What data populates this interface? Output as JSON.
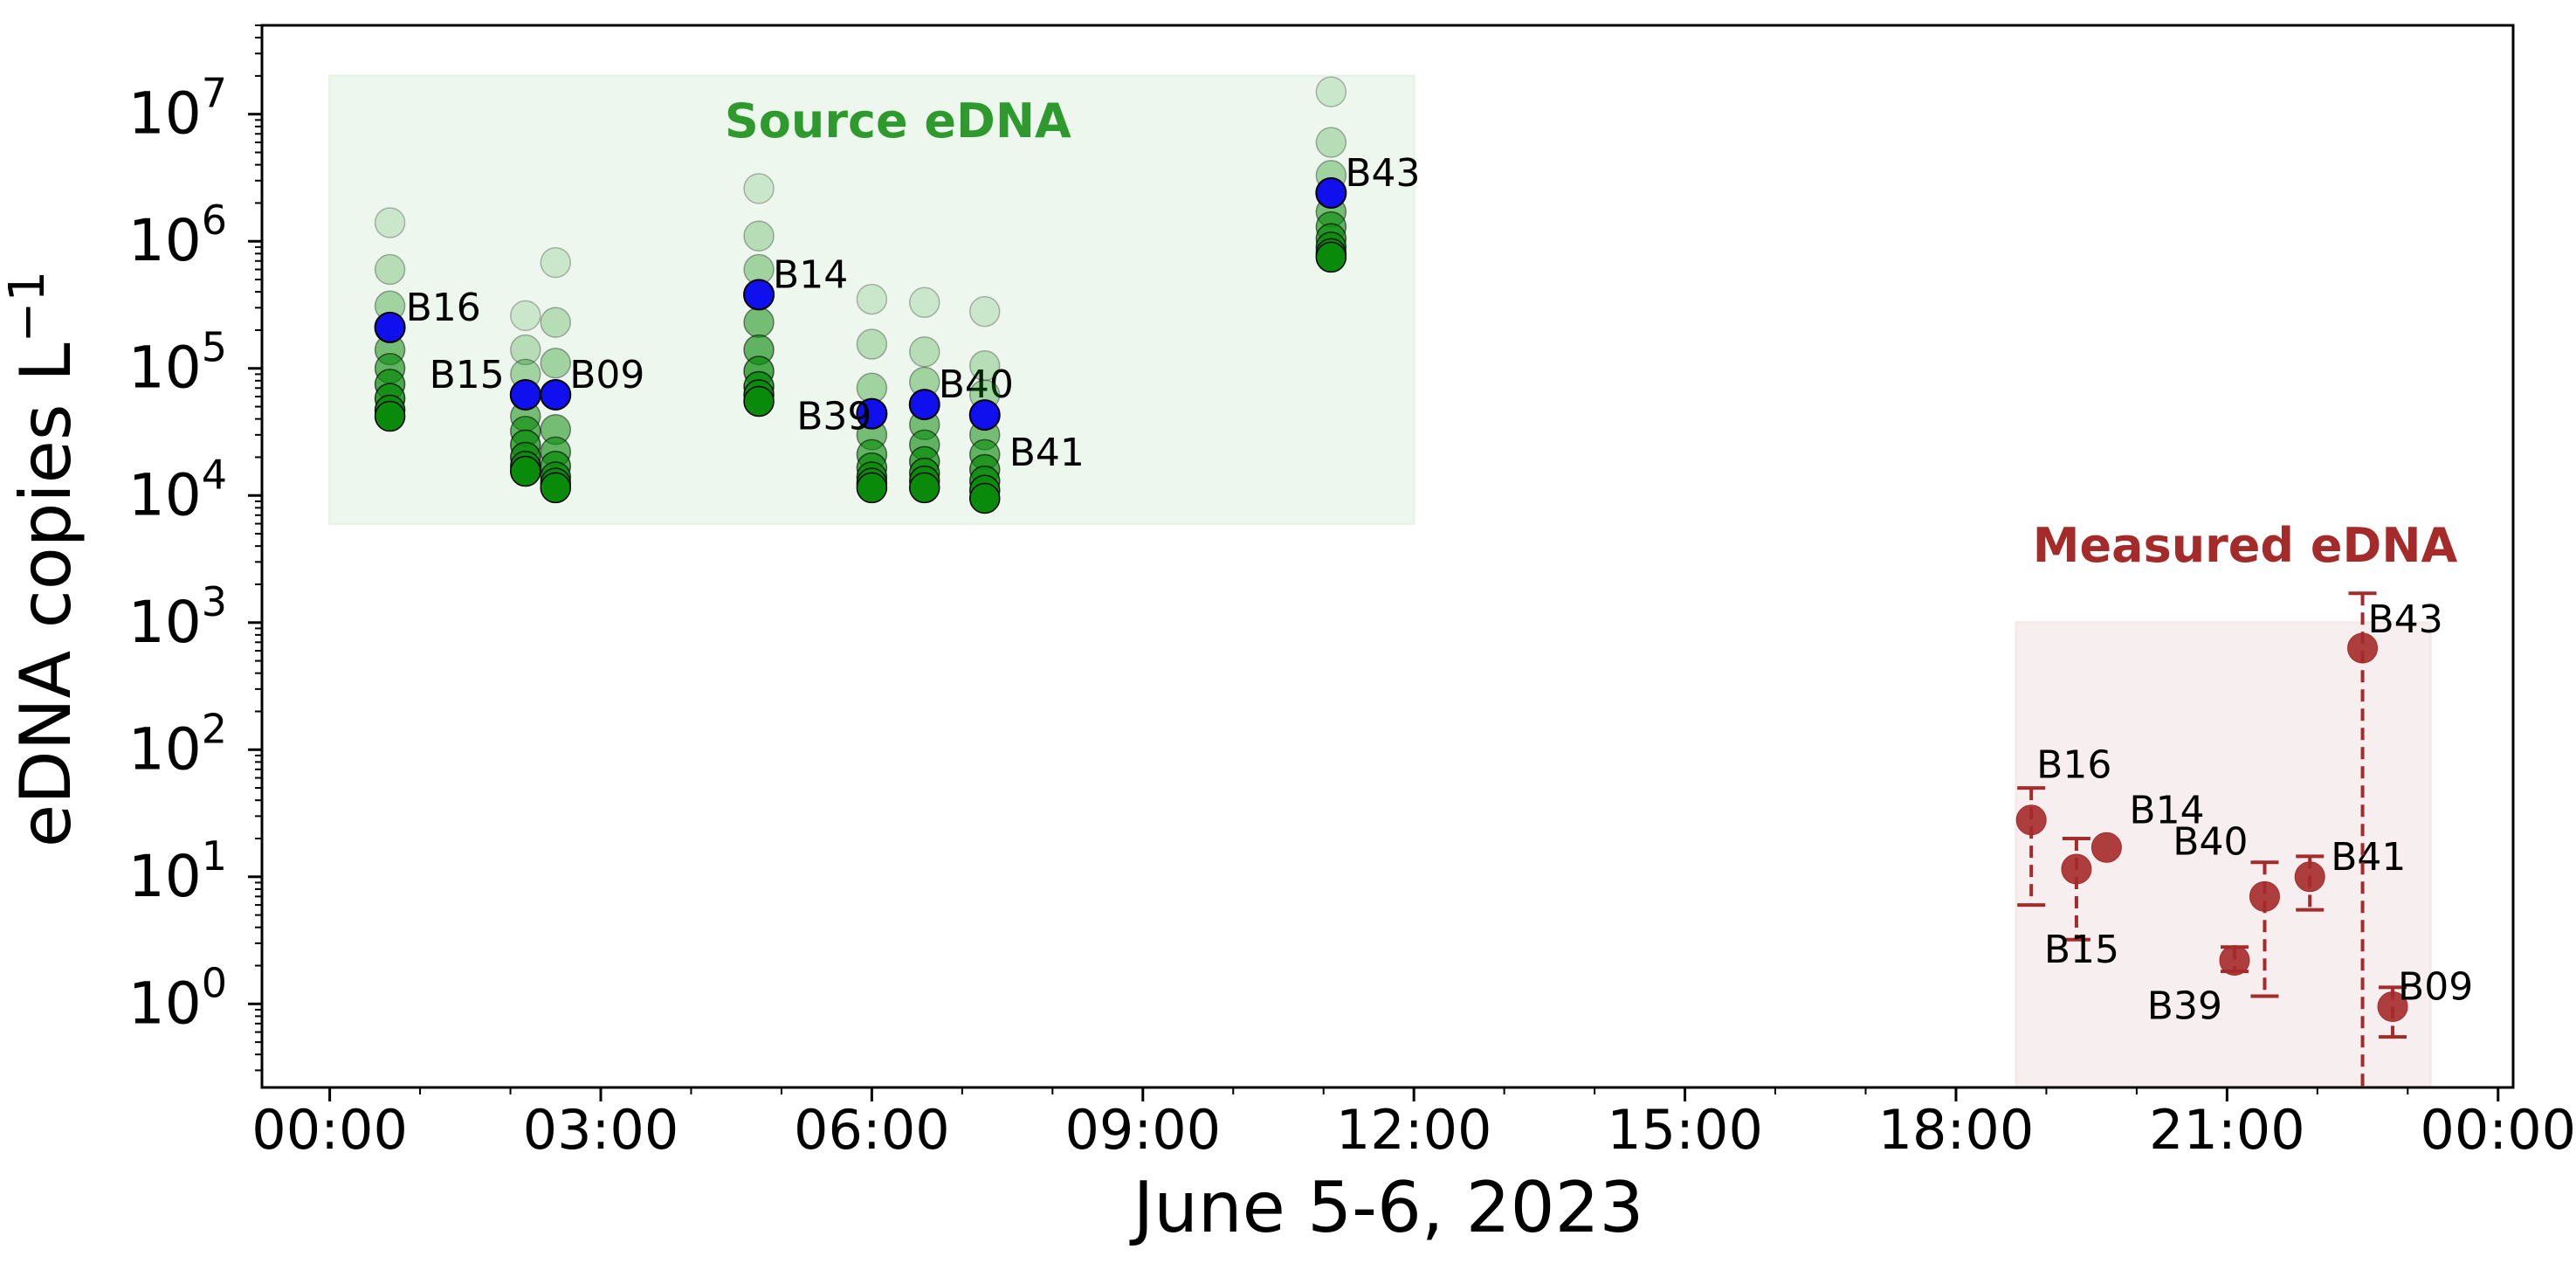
{
  "chart_data": {
    "type": "scatter",
    "title": "",
    "xlabel": "June 5-6, 2023",
    "ylabel": "eDNA copies L",
    "ylabel_superscript": "−1",
    "yscale": "log",
    "xlim": [
      "2023-06-05T23:15",
      "2023-06-07T00:10"
    ],
    "ylim": [
      0.22,
      50000000
    ],
    "x_ticks": [
      "00:00",
      "03:00",
      "06:00",
      "09:00",
      "12:00",
      "15:00",
      "18:00",
      "21:00",
      "00:00"
    ],
    "x_tick_times": [
      "2023-06-06T00:00",
      "2023-06-06T03:00",
      "2023-06-06T06:00",
      "2023-06-06T09:00",
      "2023-06-06T12:00",
      "2023-06-06T15:00",
      "2023-06-06T18:00",
      "2023-06-06T21:00",
      "2023-06-07T00:00"
    ],
    "y_ticks": [
      {
        "value": 1,
        "base": "10",
        "exp": "0"
      },
      {
        "value": 10,
        "base": "10",
        "exp": "1"
      },
      {
        "value": 100,
        "base": "10",
        "exp": "2"
      },
      {
        "value": 1000,
        "base": "10",
        "exp": "3"
      },
      {
        "value": 10000,
        "base": "10",
        "exp": "4"
      },
      {
        "value": 100000,
        "base": "10",
        "exp": "5"
      },
      {
        "value": 1000000,
        "base": "10",
        "exp": "6"
      },
      {
        "value": 10000000,
        "base": "10",
        "exp": "7"
      }
    ],
    "regions": [
      {
        "label": "Source eDNA",
        "x": [
          "2023-06-06T00:00",
          "2023-06-06T12:00"
        ],
        "y": [
          6000,
          20000000
        ],
        "fill": "#e8f4e8",
        "text_color": "#2e9a2e"
      },
      {
        "label": "Measured eDNA",
        "x": [
          "2023-06-06T18:40",
          "2023-06-06T23:15"
        ],
        "y": [
          0.22,
          1000
        ],
        "fill": "#f4e9e9",
        "text_color": "#a52a2a"
      }
    ],
    "series": [
      {
        "name": "Source eDNA",
        "color": "#0a8a0a",
        "highlight_color": "#1010ee",
        "points": [
          {
            "label": "B16",
            "x": "2023-06-06T00:40",
            "y": 210000,
            "profile": [
              1400000,
              600000,
              310000,
              210000,
              140000,
              100000,
              75000,
              58000,
              47000,
              42000
            ]
          },
          {
            "label": "B15",
            "x": "2023-06-06T02:10",
            "y": 62000,
            "profile": [
              260000,
              140000,
              90000,
              62000,
              42000,
              32000,
              25000,
              20000,
              17000,
              15500
            ]
          },
          {
            "label": "B09",
            "x": "2023-06-06T02:30",
            "y": 62000,
            "profile": [
              680000,
              230000,
              110000,
              62000,
              33000,
              22000,
              17000,
              14000,
              12500,
              11500
            ]
          },
          {
            "label": "B14",
            "x": "2023-06-06T04:45",
            "y": 380000,
            "profile": [
              2600000,
              1100000,
              600000,
              380000,
              230000,
              140000,
              95000,
              72000,
              62000,
              55000
            ]
          },
          {
            "label": "B39",
            "x": "2023-06-06T06:00",
            "y": 44000,
            "profile": [
              350000,
              155000,
              70000,
              44000,
              30000,
              21000,
              16500,
              14000,
              12500,
              11500
            ]
          },
          {
            "label": "B40",
            "x": "2023-06-06T06:35",
            "y": 52000,
            "profile": [
              330000,
              135000,
              78000,
              52000,
              36000,
              25000,
              18500,
              15000,
              13000,
              11500
            ]
          },
          {
            "label": "B41",
            "x": "2023-06-06T07:15",
            "y": 43000,
            "profile": [
              280000,
              105000,
              62000,
              43000,
              30000,
              21000,
              16000,
              13000,
              11000,
              9500
            ]
          },
          {
            "label": "B43",
            "x": "2023-06-06T11:05",
            "y": 2400000,
            "profile": [
              15000000,
              6000000,
              3300000,
              2400000,
              1700000,
              1300000,
              1050000,
              900000,
              800000,
              750000
            ]
          }
        ]
      },
      {
        "name": "Measured eDNA",
        "color": "#a52a2a",
        "points": [
          {
            "label": "B16",
            "x": "2023-06-06T18:50",
            "y": 28,
            "ylow": 6,
            "yhigh": 50
          },
          {
            "label": "B15",
            "x": "2023-06-06T19:20",
            "y": 11.5,
            "ylow": 3.2,
            "yhigh": 20
          },
          {
            "label": "B14",
            "x": "2023-06-06T19:40",
            "y": 17,
            "ylow": 17,
            "yhigh": 17
          },
          {
            "label": "B39",
            "x": "2023-06-06T21:05",
            "y": 2.2,
            "ylow": 1.8,
            "yhigh": 2.8
          },
          {
            "label": "B40",
            "x": "2023-06-06T21:25",
            "y": 7,
            "ylow": 1.15,
            "yhigh": 13
          },
          {
            "label": "B41",
            "x": "2023-06-06T21:55",
            "y": 10,
            "ylow": 5.5,
            "yhigh": 14.5
          },
          {
            "label": "B43",
            "x": "2023-06-06T22:30",
            "y": 630,
            "ylow": 0.22,
            "yhigh": 1700
          },
          {
            "label": "B09",
            "x": "2023-06-06T22:50",
            "y": 0.95,
            "ylow": 0.55,
            "yhigh": 1.35
          }
        ]
      }
    ]
  }
}
